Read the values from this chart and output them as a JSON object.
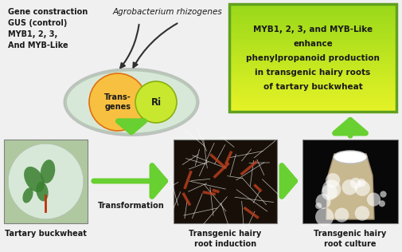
{
  "bg_color": "#ffffff",
  "gene_text": "Gene constraction\nGUS (control)\nMYB1, 2, 3,\nAnd MYB-Like",
  "agrobacterium_text": "Agrobacterium rhizogenes",
  "transgenes_text": "Trans-\ngenes",
  "ri_text": "Ri",
  "result_box_text": "MYB1, 2, 3, and MYB-Like\nenhance\nphenylpropanoid production\nin transgenic hairy roots\nof tartary buckwheat",
  "label_buckwheat": "Tartary buckwheat",
  "label_transformation": "Transformation",
  "label_hairy_root": "Transgenic hairy\nroot induction",
  "label_hairy_culture": "Transgenic hairy\nroot culture",
  "ellipse_outer_color": "#b8c8b8",
  "ellipse_inner_color": "#d8e8d8",
  "transgenes_color_center": "#f8c040",
  "transgenes_color_edge": "#e07010",
  "ri_color_center": "#c8e830",
  "ri_color_edge": "#88b010",
  "result_box_bg_top": "#e8f860",
  "result_box_bg_bot": "#90d020",
  "result_box_border": "#60a020",
  "arrow_green": "#68d030",
  "arrow_green_dark": "#40a010",
  "black_arrow_color": "#303030",
  "text_color": "#1a1a1a",
  "photo1_bg": "#b0c8a0",
  "photo2_bg": "#d0c0b0",
  "photo3_bg": "#101010"
}
